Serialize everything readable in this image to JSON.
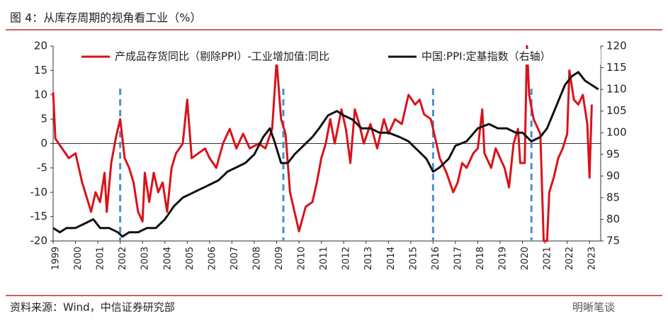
{
  "chart_data": {
    "type": "line",
    "title": "图 4：从库存周期的视角看工业（%）",
    "source": "资料来源：Wind，中信证券研究部",
    "watermark": "明晰笔谈",
    "legend": "top",
    "xlim": [
      1999,
      2023.5
    ],
    "xticks": [
      1999,
      2000,
      2001,
      2002,
      2003,
      2004,
      2005,
      2006,
      2007,
      2008,
      2009,
      2010,
      2011,
      2012,
      2013,
      2014,
      2015,
      2016,
      2017,
      2018,
      2019,
      2020,
      2021,
      2022,
      2023
    ],
    "ylim": [
      -20,
      20
    ],
    "yticks": [
      -20,
      -15,
      -10,
      -5,
      0,
      5,
      10,
      15,
      20
    ],
    "y2lim": [
      75,
      120
    ],
    "y2ticks": [
      75,
      80,
      85,
      90,
      95,
      100,
      105,
      110,
      115,
      120
    ],
    "vlines": [
      2002,
      2009.3,
      2016,
      2020.4
    ],
    "vline_color": "#4a90d0",
    "series": [
      {
        "name": "产成品存货同比（剔除PPI）-工业增加值:同比",
        "color": "#d9121b",
        "x": [
          1999.0,
          1999.1,
          1999.4,
          1999.7,
          2000.0,
          2000.3,
          2000.5,
          2000.7,
          2000.9,
          2001.1,
          2001.3,
          2001.4,
          2001.6,
          2001.8,
          2002.0,
          2002.2,
          2002.4,
          2002.6,
          2002.8,
          2003.0,
          2003.1,
          2003.3,
          2003.5,
          2003.7,
          2003.9,
          2004.1,
          2004.3,
          2004.5,
          2004.8,
          2005.0,
          2005.2,
          2005.5,
          2005.8,
          2006.0,
          2006.3,
          2006.6,
          2006.9,
          2007.2,
          2007.5,
          2007.8,
          2008.2,
          2008.5,
          2008.8,
          2009.0,
          2009.2,
          2009.4,
          2009.6,
          2009.8,
          2010.0,
          2010.3,
          2010.6,
          2010.8,
          2011.0,
          2011.2,
          2011.4,
          2011.6,
          2011.9,
          2012.1,
          2012.3,
          2012.5,
          2012.7,
          2012.9,
          2013.2,
          2013.5,
          2013.8,
          2014.0,
          2014.3,
          2014.6,
          2014.9,
          2015.2,
          2015.4,
          2015.6,
          2015.9,
          2016.1,
          2016.3,
          2016.6,
          2016.9,
          2017.1,
          2017.3,
          2017.5,
          2017.8,
          2018.0,
          2018.2,
          2018.3,
          2018.6,
          2018.8,
          2019.0,
          2019.2,
          2019.4,
          2019.6,
          2019.8,
          2019.9,
          2020.1,
          2020.2,
          2020.3,
          2020.5,
          2020.8,
          2020.95,
          2021.1,
          2021.2,
          2021.4,
          2021.6,
          2021.8,
          2022.0,
          2022.1,
          2022.3,
          2022.5,
          2022.7,
          2022.9,
          2023.0,
          2023.1
        ],
        "values": [
          10.5,
          1,
          -1,
          -3,
          -2,
          -8,
          -11,
          -14,
          -10,
          -12,
          -6,
          -14,
          -4,
          1,
          5,
          -3,
          -5,
          -8,
          -14,
          -16,
          -6,
          -12,
          -6,
          -10,
          -8,
          -14,
          -5,
          -2,
          0,
          9,
          -3,
          -2,
          -1,
          -3,
          -5,
          0,
          3,
          -1,
          2,
          -1,
          0,
          -1,
          3,
          17,
          5,
          2,
          -10,
          -14,
          -18,
          -13,
          -12,
          -8,
          -3,
          0,
          5,
          0,
          7,
          3,
          -4,
          7,
          4,
          0,
          4,
          -1,
          5,
          2,
          5,
          4,
          10,
          8,
          9,
          6,
          5,
          1,
          -3,
          -6,
          -10,
          -8,
          -4,
          -5,
          -2,
          -1,
          7,
          -2,
          -5,
          -1,
          -3,
          -5,
          -9,
          0,
          3,
          -4,
          -4,
          20,
          10,
          5,
          2,
          -20,
          -20,
          -10,
          -7,
          -3,
          -1,
          2,
          15,
          9,
          8,
          10,
          4,
          -7,
          8
        ]
      },
      {
        "name": "中国:PPI:定基指数（右轴）",
        "color": "#111111",
        "axis": "y2",
        "x": [
          1999.0,
          1999.3,
          1999.6,
          2000.0,
          2000.4,
          2000.8,
          2001.1,
          2001.5,
          2001.9,
          2002.1,
          2002.4,
          2002.8,
          2003.2,
          2003.6,
          2004.0,
          2004.4,
          2004.8,
          2005.2,
          2005.6,
          2006.0,
          2006.4,
          2006.8,
          2007.2,
          2007.6,
          2008.0,
          2008.4,
          2008.7,
          2008.9,
          2009.2,
          2009.5,
          2009.8,
          2010.2,
          2010.6,
          2010.9,
          2011.3,
          2011.7,
          2012.0,
          2012.4,
          2012.8,
          2013.2,
          2013.6,
          2014.0,
          2014.5,
          2014.9,
          2015.3,
          2015.7,
          2016.0,
          2016.3,
          2016.7,
          2017.0,
          2017.5,
          2018.0,
          2018.5,
          2018.9,
          2019.3,
          2019.7,
          2020.0,
          2020.4,
          2020.8,
          2021.1,
          2021.5,
          2021.9,
          2022.2,
          2022.5,
          2022.8,
          2023.1,
          2023.4
        ],
        "values": [
          78,
          77,
          78,
          78,
          79,
          80,
          78,
          78,
          77,
          76,
          77,
          77,
          78,
          78,
          80,
          83,
          85,
          86,
          87,
          88,
          89,
          91,
          92,
          93,
          95,
          99,
          101,
          98,
          93,
          93,
          95,
          97,
          99,
          101,
          104,
          105,
          104,
          103,
          101,
          101,
          100,
          100,
          99,
          98,
          96,
          94,
          91,
          92,
          94,
          97,
          98,
          101,
          102,
          101,
          101,
          100,
          100,
          98,
          99,
          101,
          106,
          111,
          113,
          114,
          112,
          111,
          110
        ]
      }
    ]
  }
}
